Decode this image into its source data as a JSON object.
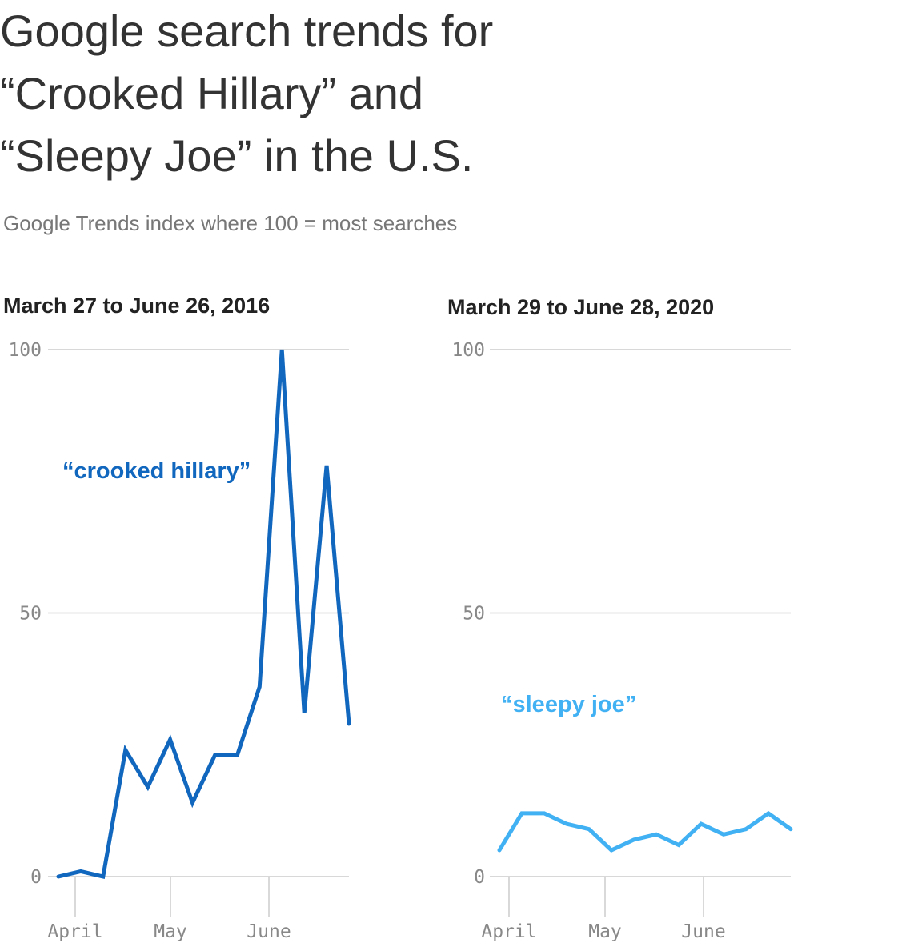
{
  "title_lines": [
    "Google search trends for",
    "“Crooked Hillary” and",
    "“Sleepy Joe” in the U.S."
  ],
  "subtitle": "Google Trends index where 100 = most searches",
  "colors": {
    "hillary": "#1167be",
    "joe": "#42b1f4"
  },
  "chart_data": [
    {
      "type": "line",
      "title": "March 27 to June 26, 2016",
      "ylim": [
        0,
        100
      ],
      "yticks": [
        "0",
        "50",
        "100"
      ],
      "xtick_labels": [
        "April",
        "May",
        "June"
      ],
      "x": [
        "Mar 27",
        "Apr 3",
        "Apr 10",
        "Apr 17",
        "Apr 24",
        "May 1",
        "May 8",
        "May 15",
        "May 22",
        "May 29",
        "Jun 5",
        "Jun 12",
        "Jun 19",
        "Jun 26"
      ],
      "series": [
        {
          "name": "“crooked hillary”",
          "values": [
            0,
            1,
            0,
            24,
            17,
            26,
            14,
            23,
            23,
            36,
            100,
            31,
            78,
            29
          ]
        }
      ]
    },
    {
      "type": "line",
      "title": "March 29 to June 28, 2020",
      "ylim": [
        0,
        100
      ],
      "yticks": [
        "0",
        "50",
        "100"
      ],
      "xtick_labels": [
        "April",
        "May",
        "June"
      ],
      "x": [
        "Mar 29",
        "Apr 5",
        "Apr 12",
        "Apr 19",
        "Apr 26",
        "May 3",
        "May 10",
        "May 17",
        "May 24",
        "May 31",
        "Jun 7",
        "Jun 14",
        "Jun 21",
        "Jun 28"
      ],
      "series": [
        {
          "name": "“sleepy joe”",
          "values": [
            5,
            12,
            12,
            10,
            9,
            5,
            7,
            8,
            6,
            10,
            8,
            9,
            12,
            9
          ]
        }
      ]
    }
  ]
}
